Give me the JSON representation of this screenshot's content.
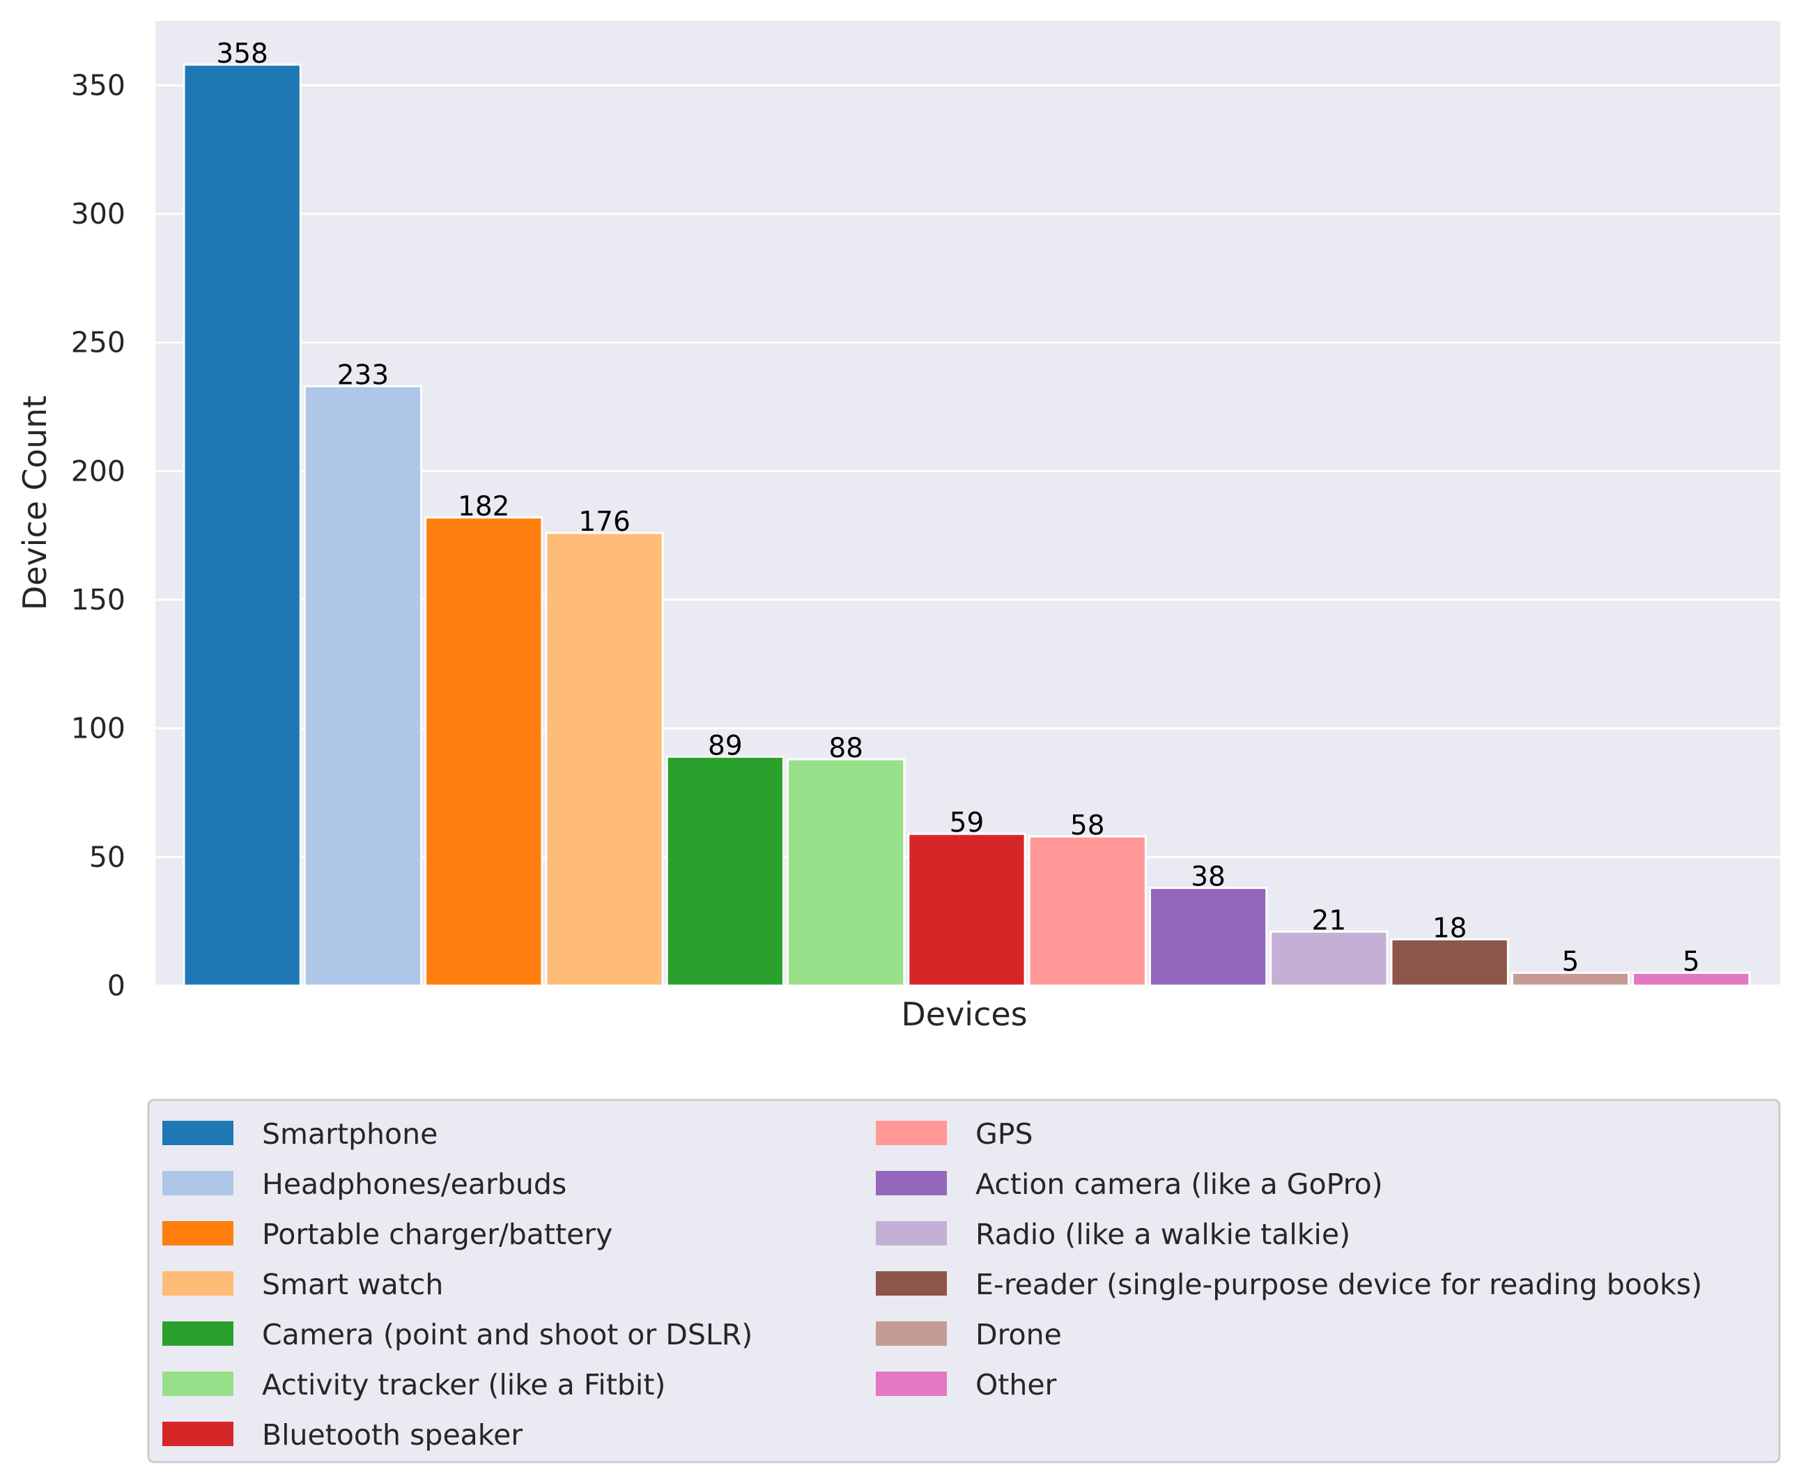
{
  "chart_data": {
    "type": "bar",
    "title": "",
    "xlabel": "Devices",
    "ylabel": "Device Count",
    "ylim": [
      0,
      375
    ],
    "yticks": [
      0,
      50,
      100,
      150,
      200,
      250,
      300,
      350
    ],
    "grid": true,
    "legend_position": "bottom",
    "categories": [
      "Smartphone",
      "Headphones/earbuds",
      "Portable charger/battery",
      "Smart watch",
      "Camera (point and shoot or DSLR)",
      "Activity tracker (like a Fitbit)",
      "Bluetooth speaker",
      "GPS",
      "Action camera (like a GoPro)",
      "Radio (like a walkie talkie)",
      "E-reader (single-purpose device for reading books)",
      "Drone",
      "Other"
    ],
    "values": [
      358,
      233,
      182,
      176,
      89,
      88,
      59,
      58,
      38,
      21,
      18,
      5,
      5
    ],
    "colors": [
      "#1f77b4",
      "#aec7e8",
      "#ff7f0e",
      "#ffbb78",
      "#2ca02c",
      "#98df8a",
      "#d62728",
      "#ff9896",
      "#9467bd",
      "#c5b0d5",
      "#8c564b",
      "#c49c94",
      "#e377c2"
    ],
    "plot_background": "#eaeaf2",
    "grid_color": "#ffffff"
  }
}
